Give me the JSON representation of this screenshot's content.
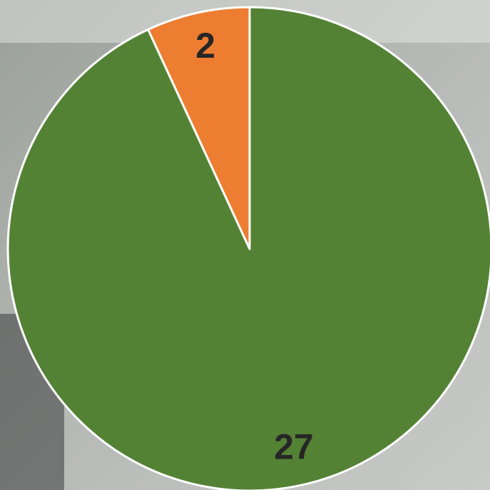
{
  "chart_data": {
    "type": "pie",
    "values": [
      27,
      2
    ],
    "colors": [
      "#548235",
      "#ed7d31"
    ],
    "start_angle": 0,
    "direction": "clockwise"
  }
}
